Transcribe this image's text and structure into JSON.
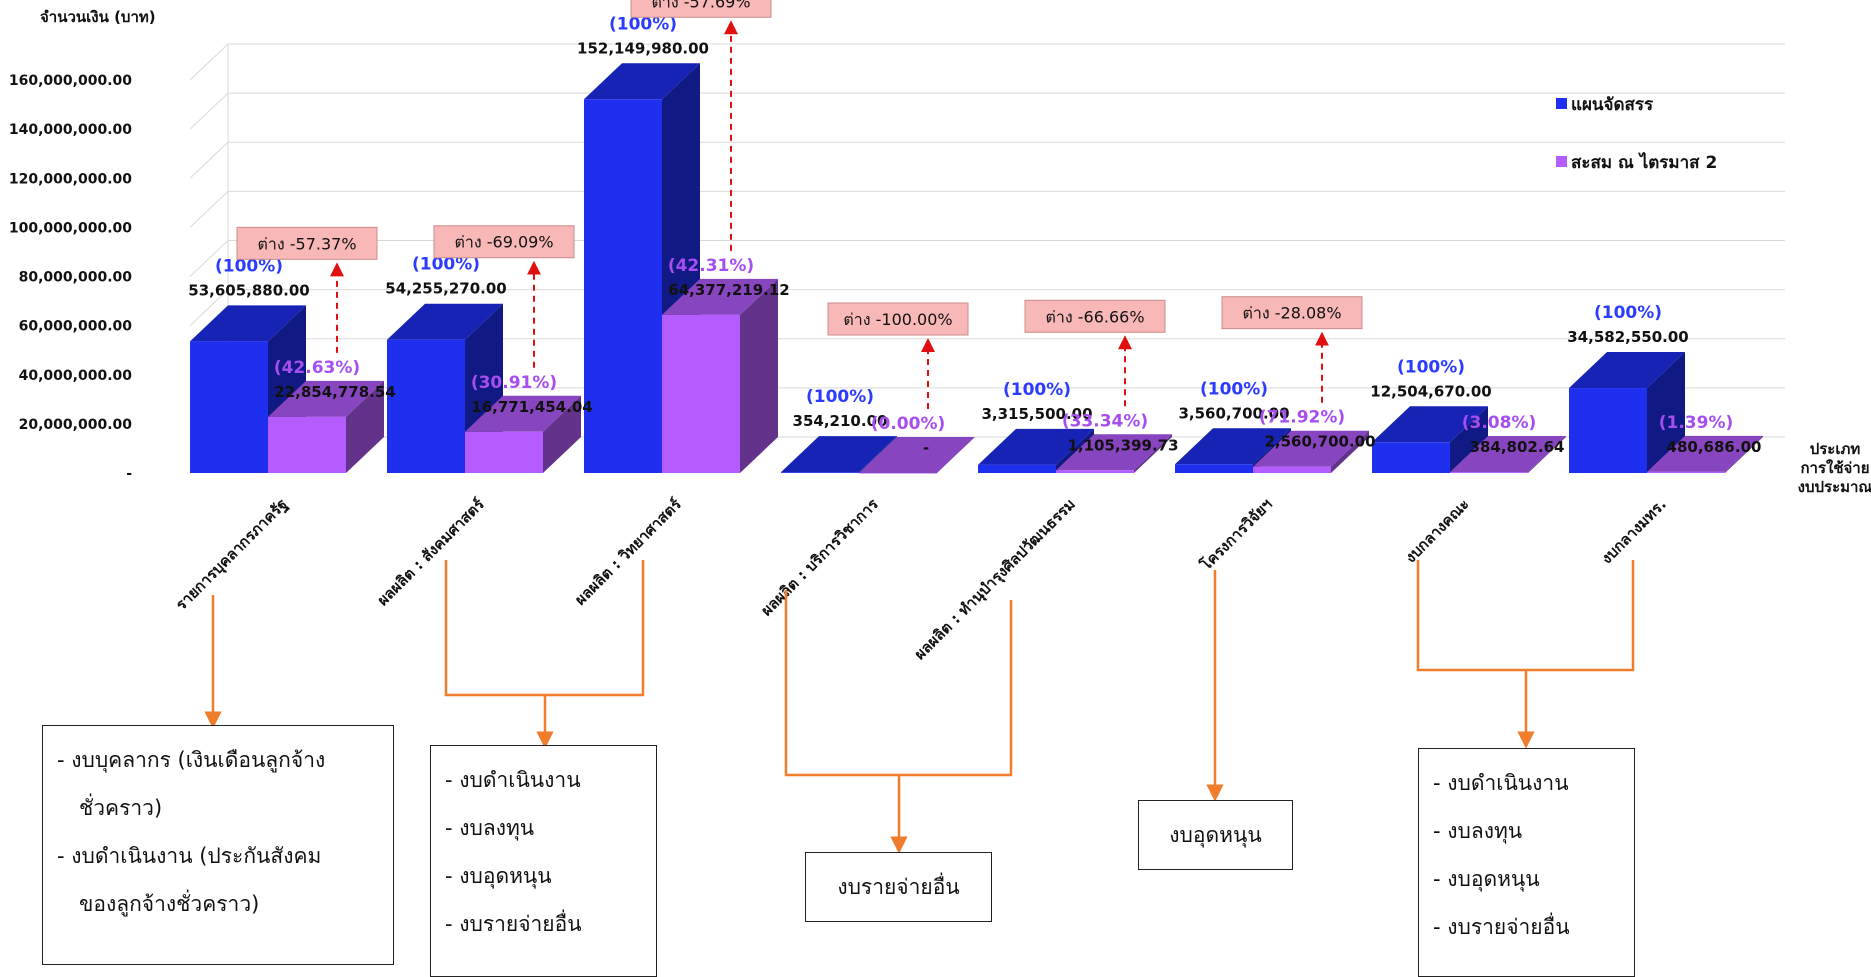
{
  "chart_data": {
    "type": "bar",
    "ylabel": "จำนวนเงิน (บาท)",
    "xlabel": "ประเภท การใช้จ่าย งบประมาณ",
    "ylim": [
      0,
      160000000
    ],
    "yticks": [
      "-",
      "20,000,000.00",
      "40,000,000.00",
      "60,000,000.00",
      "80,000,000.00",
      "100,000,000.00",
      "120,000,000.00",
      "140,000,000.00",
      "160,000,000.00"
    ],
    "grid": true,
    "legend_position": "right",
    "categories": [
      "รายการบุคลากรภาครัฐ",
      "ผลผลิต : สังคมศาสตร์",
      "ผลผลิต : วิทยาศาสตร์",
      "ผลผลิต : บริการวิชาการ",
      "ผลผลิต : ทำนุบำรุงศิลปวัฒนธรรม",
      "โครงการวิจัยฯ",
      "งบกลางคณะ",
      "งบกลางมทร."
    ],
    "series": [
      {
        "name": "แผนจัดสรร",
        "color": "#1f2ff0",
        "values": [
          53605880.0,
          54255270.0,
          152149980.0,
          354210.0,
          3315500.0,
          3560700.0,
          12504670.0,
          34582550.0
        ],
        "value_labels": [
          "53,605,880.00",
          "54,255,270.00",
          "152,149,980.00",
          "354,210.00",
          "3,315,500.00",
          "3,560,700.00",
          "12,504,670.00",
          "34,582,550.00"
        ],
        "pct_labels": [
          "(100%)",
          "(100%)",
          "(100%)",
          "(100%)",
          "(100%)",
          "(100%)",
          "(100%)",
          "(100%)"
        ]
      },
      {
        "name": "สะสม ณ ไตรมาส 2",
        "color": "#b45cff",
        "values": [
          22854778.54,
          16771454.04,
          64377219.12,
          0,
          1105399.73,
          2560700.0,
          384802.64,
          480686.0
        ],
        "value_labels": [
          "22,854,778.54",
          "16,771,454.04",
          "64,377,219.12",
          "-",
          "1,105,399.73",
          "2,560,700.00",
          "384,802.64",
          "480,686.00"
        ],
        "pct_labels": [
          "(42.63%)",
          "(30.91%)",
          "(42.31%)",
          "(0.00%)",
          "(33.34%)",
          "(71.92%)",
          "(3.08%)",
          "(1.39%)"
        ]
      }
    ],
    "diff_labels": [
      "ต่าง -57.37%",
      "ต่าง -69.09%",
      "ต่าง -57.69%",
      "ต่าง -100.00%",
      "ต่าง -66.66%",
      "ต่าง -28.08%"
    ]
  },
  "groups": [
    {
      "items": [
        "- งบบุคลากร (เงินเดือนลูกจ้าง",
        "ชั่วคราว)",
        "- งบดำเนินงาน (ประกันสังคม",
        "ของลูกจ้างชั่วคราว)"
      ]
    },
    {
      "items": [
        "- งบดำเนินงาน",
        "- งบลงทุน",
        "- งบอุดหนุน",
        "- งบรายจ่ายอื่น"
      ]
    },
    {
      "items": [
        "งบรายจ่ายอื่น"
      ]
    },
    {
      "items": [
        "งบอุดหนุน"
      ]
    },
    {
      "items": [
        "- งบดำเนินงาน",
        "- งบลงทุน",
        "- งบอุดหนุน",
        "- งบรายจ่ายอื่น"
      ]
    }
  ]
}
